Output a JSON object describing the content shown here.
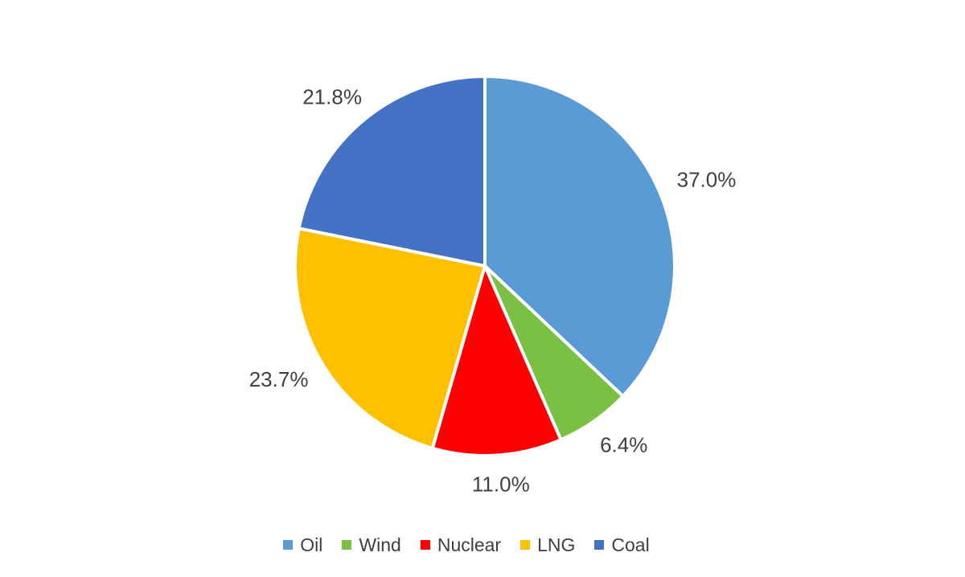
{
  "chart_data": {
    "type": "pie",
    "title": "",
    "categories": [
      "Oil",
      "Wind",
      "Nuclear",
      "LNG",
      "Coal"
    ],
    "values": [
      37.0,
      6.4,
      11.0,
      23.7,
      21.8
    ],
    "labels": [
      "37.0%",
      "6.4%",
      "11.0%",
      "23.7%",
      "21.8%"
    ],
    "colors": [
      "#5B9BD5",
      "#79C043",
      "#FF0000",
      "#FFC000",
      "#4472C4"
    ],
    "start_angle": "top",
    "direction": "clockwise",
    "slice_separator_color": "#FFFFFF",
    "label_color": "#404040",
    "legend_position": "bottom",
    "legend_entries": [
      "Oil",
      "Wind",
      "Nuclear",
      "LNG",
      "Coal"
    ],
    "background_color": "#FFFFFF"
  }
}
